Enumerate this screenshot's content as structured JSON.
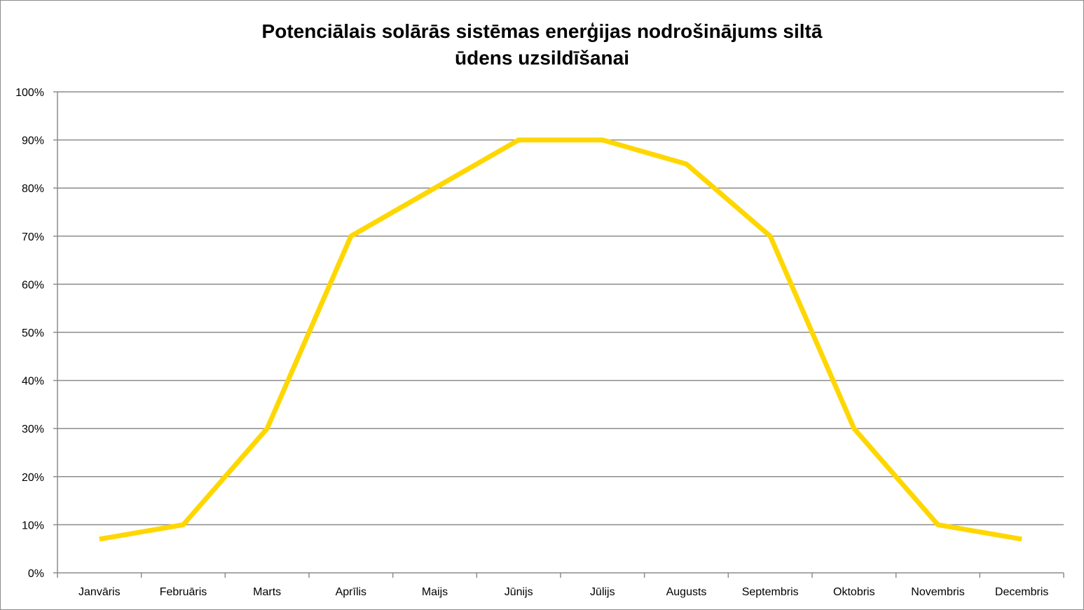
{
  "chart_data": {
    "type": "line",
    "title_lines": [
      "Potenciālais solārās sistēmas enerģijas nodrošinājums siltā",
      "ūdens uzsildīšanai"
    ],
    "categories": [
      "Janvāris",
      "Februāris",
      "Marts",
      "Aprīlis",
      "Maijs",
      "Jūnijs",
      "Jūlijs",
      "Augusts",
      "Septembris",
      "Oktobris",
      "Novembris",
      "Decembris"
    ],
    "series": [
      {
        "values": [
          7,
          10,
          30,
          70,
          80,
          90,
          90,
          85,
          70,
          30,
          10,
          7
        ]
      }
    ],
    "y_ticks": [
      "0%",
      "10%",
      "20%",
      "30%",
      "40%",
      "50%",
      "60%",
      "70%",
      "80%",
      "90%",
      "100%"
    ],
    "ylim": [
      0,
      100
    ],
    "grid": true,
    "legend": "none",
    "colors": {
      "line": "#FFD700",
      "grid": "#8c8c8c",
      "axis": "#8c8c8c"
    }
  }
}
